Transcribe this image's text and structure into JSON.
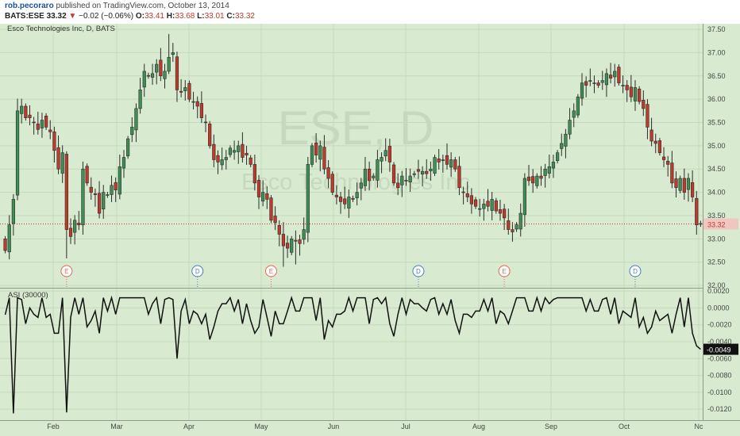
{
  "header": {
    "author": "rob.pecoraro",
    "published_text": "published on TradingView.com, October 13, 2014",
    "symbol": "BATS:ESE",
    "last": "33.32",
    "change_arrow": "▼",
    "change": "−0.02 (−0.06%)",
    "o_label": "O:",
    "o": "33.41",
    "h_label": "H:",
    "h": "33.68",
    "l_label": "L:",
    "l": "33.01",
    "c_label": "C:",
    "c": "33.32"
  },
  "chart_data": [
    {
      "type": "candlestick",
      "title": "Esco Technologies Inc, D, BATS",
      "watermark_symbol": "ESE, D",
      "watermark_name": "Esco Technologies Inc",
      "ylim": [
        31.95,
        37.62
      ],
      "y_ticks": [
        32.0,
        32.5,
        33.0,
        33.5,
        34.0,
        34.5,
        35.0,
        35.5,
        36.0,
        36.5,
        37.0,
        37.5
      ],
      "y_tick_labels": [
        "32.00",
        "32.50",
        "33.00",
        "33.50",
        "34.00",
        "34.50",
        "35.00",
        "35.50",
        "36.00",
        "36.50",
        "37.00",
        "37.50"
      ],
      "last_price": 33.32,
      "last_price_label": "33.32",
      "up_color": "#3f8f55",
      "down_color": "#c0392b",
      "background": "#d8ebd0",
      "x_months": [
        "Feb",
        "Mar",
        "Apr",
        "May",
        "Jun",
        "Jul",
        "Aug",
        "Sep",
        "Oct",
        "Nc"
      ],
      "events": [
        {
          "label": "E",
          "type": "earnings",
          "bar": 15
        },
        {
          "label": "D",
          "type": "dividend",
          "bar": 47
        },
        {
          "label": "E",
          "type": "earnings",
          "bar": 65
        },
        {
          "label": "D",
          "type": "dividend",
          "bar": 101
        },
        {
          "label": "E",
          "type": "earnings",
          "bar": 122
        },
        {
          "label": "D",
          "type": "dividend",
          "bar": 154
        }
      ],
      "closes": [
        32.75,
        33.3,
        33.85,
        35.75,
        35.85,
        35.6,
        35.6,
        35.5,
        35.35,
        35.55,
        35.4,
        35.3,
        34.9,
        34.5,
        34.85,
        33.2,
        33.05,
        33.4,
        33.3,
        34.5,
        34.2,
        34.0,
        33.95,
        33.55,
        34.0,
        33.95,
        34.15,
        34.05,
        34.55,
        34.75,
        35.15,
        35.4,
        35.8,
        36.2,
        36.6,
        36.5,
        36.55,
        36.75,
        36.5,
        36.6,
        36.9,
        37.0,
        36.2,
        36.15,
        36.25,
        36.0,
        35.95,
        35.85,
        35.6,
        35.5,
        35.0,
        34.7,
        34.65,
        34.7,
        34.75,
        34.95,
        34.9,
        35.0,
        34.75,
        34.8,
        34.6,
        34.2,
        33.9,
        34.0,
        33.85,
        33.4,
        33.35,
        33.1,
        32.85,
        32.8,
        33.0,
        32.95,
        32.9,
        33.2,
        34.6,
        35.0,
        34.8,
        35.0,
        34.5,
        34.3,
        34.0,
        33.9,
        33.8,
        33.75,
        33.9,
        33.85,
        34.0,
        34.2,
        34.5,
        34.25,
        34.35,
        34.7,
        34.75,
        34.9,
        34.65,
        34.2,
        34.1,
        34.35,
        34.25,
        34.35,
        34.4,
        34.45,
        34.45,
        34.4,
        34.5,
        34.75,
        34.65,
        34.7,
        34.6,
        34.7,
        34.5,
        34.1,
        34.0,
        33.9,
        33.75,
        33.7,
        33.65,
        33.75,
        33.7,
        33.85,
        33.6,
        33.55,
        33.45,
        33.2,
        33.15,
        33.3,
        33.55,
        34.3,
        34.25,
        34.2,
        34.35,
        34.3,
        34.5,
        34.55,
        34.65,
        34.85,
        35.05,
        35.25,
        35.55,
        35.75,
        36.05,
        36.35,
        36.3,
        36.4,
        36.35,
        36.3,
        36.4,
        36.55,
        36.45,
        36.6,
        36.35,
        36.3,
        36.2,
        36.05,
        36.25,
        35.95,
        35.8,
        35.4,
        35.1,
        35.05,
        34.85,
        34.7,
        34.6,
        34.2,
        34.1,
        34.3,
        34.0,
        34.3,
        33.9,
        33.3,
        33.32
      ]
    },
    {
      "type": "line",
      "title": "ASI (30000)",
      "ylim": [
        -0.0133,
        0.0022
      ],
      "y_ticks": [
        0.002,
        0.0,
        -0.002,
        -0.004,
        -0.006,
        -0.008,
        -0.01,
        -0.012
      ],
      "y_tick_labels": [
        "0.0020",
        "0.0000",
        "-0.0020",
        "-0.0040",
        "-0.0060",
        "-0.0080",
        "-0.0100",
        "-0.0120"
      ],
      "last_value": -0.0049,
      "last_value_label": "-0.0049",
      "line_color": "#111111"
    }
  ]
}
